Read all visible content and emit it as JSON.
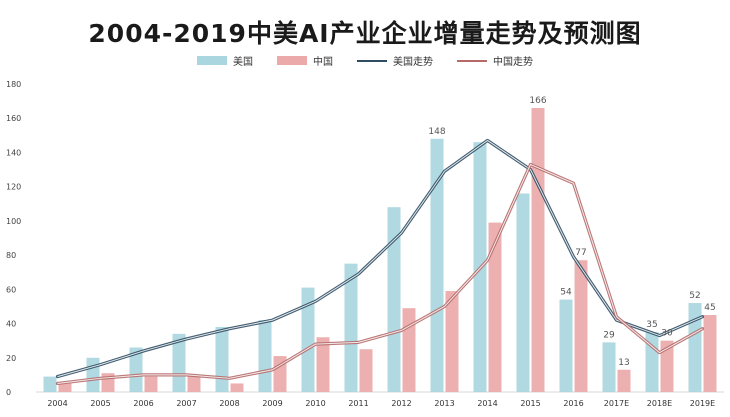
{
  "chart_data": {
    "type": "bar",
    "title": "2004-2019中美AI产业企业增量走势及预测图",
    "categories": [
      "2004",
      "2005",
      "2006",
      "2007",
      "2008",
      "2009",
      "2010",
      "2011",
      "2012",
      "2013",
      "2014",
      "2015",
      "2016",
      "2017E",
      "2018E",
      "2019E"
    ],
    "series": [
      {
        "name": "美国",
        "kind": "bar",
        "color": "#a9d6df",
        "values": [
          9,
          20,
          26,
          34,
          38,
          42,
          61,
          75,
          108,
          148,
          146,
          116,
          54,
          29,
          35,
          52
        ]
      },
      {
        "name": "中国",
        "kind": "bar",
        "color": "#eba9a9",
        "values": [
          5,
          11,
          9,
          10,
          5,
          21,
          32,
          25,
          49,
          59,
          99,
          166,
          77,
          13,
          30,
          45
        ]
      },
      {
        "name": "美国走势",
        "kind": "line",
        "color": "#2e4d63",
        "values": [
          9,
          16,
          24,
          31,
          37,
          42,
          53,
          69,
          93,
          129,
          147,
          130,
          79,
          42,
          33,
          44
        ]
      },
      {
        "name": "中国走势",
        "kind": "line",
        "color": "#b56a6a",
        "values": [
          5,
          8,
          10,
          10,
          8,
          13,
          28,
          29,
          36,
          50,
          77,
          133,
          122,
          44,
          23,
          37
        ]
      }
    ],
    "data_labels": [
      {
        "series": "美国",
        "category": "2013",
        "text": "148"
      },
      {
        "series": "中国",
        "category": "2015",
        "text": "166"
      },
      {
        "series": "美国",
        "category": "2016",
        "text": "54"
      },
      {
        "series": "中国",
        "category": "2016",
        "text": "77"
      },
      {
        "series": "美国",
        "category": "2017E",
        "text": "29"
      },
      {
        "series": "中国",
        "category": "2017E",
        "text": "13"
      },
      {
        "series": "美国",
        "category": "2018E",
        "text": "35"
      },
      {
        "series": "中国",
        "category": "2018E",
        "text": "30"
      },
      {
        "series": "美国",
        "category": "2019E",
        "text": "52"
      },
      {
        "series": "中国",
        "category": "2019E",
        "text": "45"
      }
    ],
    "ylim": [
      0,
      180
    ],
    "yticks": [
      0,
      20,
      40,
      60,
      80,
      100,
      120,
      140,
      160,
      180
    ],
    "xlabel": "",
    "ylabel": "",
    "legend_position": "top-center",
    "grid": false
  }
}
